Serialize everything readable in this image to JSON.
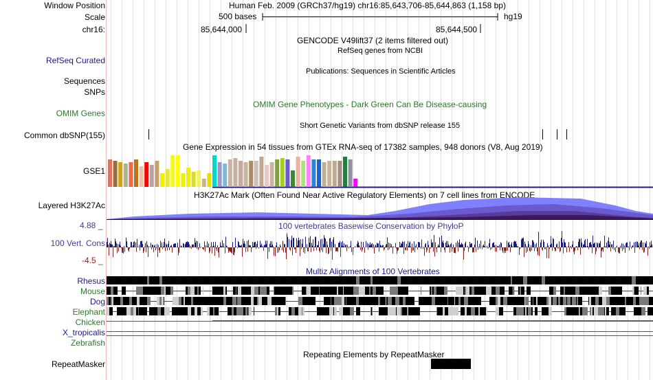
{
  "header": {
    "window_position_label": "Window Position",
    "window_position_value": "Human Feb. 2009 (GRCh37/hg19)   chr16:85,643,706-85,644,863 (1,158 bp)",
    "scale_label": "Scale",
    "scale_value": "500 bases",
    "scale_assembly": "hg19",
    "chrom_label": "chr16:",
    "ticks": [
      "85,644,000",
      "85,644,500"
    ]
  },
  "tracks": {
    "gencode": {
      "title": "GENCODE V49lift37 (2 items filtered out)"
    },
    "refseq": {
      "label": "RefSeq Curated",
      "title": "RefSeq genes from NCBI",
      "color": "#1a1a80"
    },
    "publications": {
      "title": "Publications: Sequences in Scientific Articles"
    },
    "sequences": {
      "label": "Sequences"
    },
    "snps": {
      "label": "SNPs"
    },
    "omim": {
      "label": "OMIM Genes",
      "title": "OMIM Gene Phenotypes - Dark Green Can Be Disease-causing",
      "color": "#2a7a2a"
    },
    "dbsnp": {
      "label": "Common dbSNP(155)",
      "title": "Short Genetic Variants from dbSNP release 155"
    },
    "gtex": {
      "label": "GSE1",
      "title": "Gene Expression in 54 tissues from GTEx RNA-seq of 17382 samples, 948 donors (V8, Aug 2019)"
    },
    "h3k27ac": {
      "label": "Layered H3K27Ac",
      "title": "H3K27Ac Mark (Often Found Near Active Regulatory Elements) on 7 cell lines from ENCODE"
    },
    "cons": {
      "label": "100 Vert. Cons",
      "max": "4.88 _",
      "min": "-4.5 _",
      "title": "100 vertebrates Basewise Conservation by PhyloP",
      "color": "#3c3c96"
    },
    "multiz": {
      "title": "Multiz Alignments of 100 Vertebrates",
      "species": [
        {
          "name": "Rhesus",
          "color": "#1a1a80"
        },
        {
          "name": "Mouse",
          "color": "#2a7a2a"
        },
        {
          "name": "Dog",
          "color": "#1a1a80"
        },
        {
          "name": "Elephant",
          "color": "#2a7a2a"
        },
        {
          "name": "Chicken",
          "color": "#2a7a2a"
        },
        {
          "name": "X_tropicalis",
          "color": "#1a1a80"
        },
        {
          "name": "Zebrafish",
          "color": "#2a7a2a"
        }
      ]
    },
    "repeatmasker": {
      "label": "RepeatMasker",
      "title": "Repeating Elements by RepeatMasker"
    }
  }
}
